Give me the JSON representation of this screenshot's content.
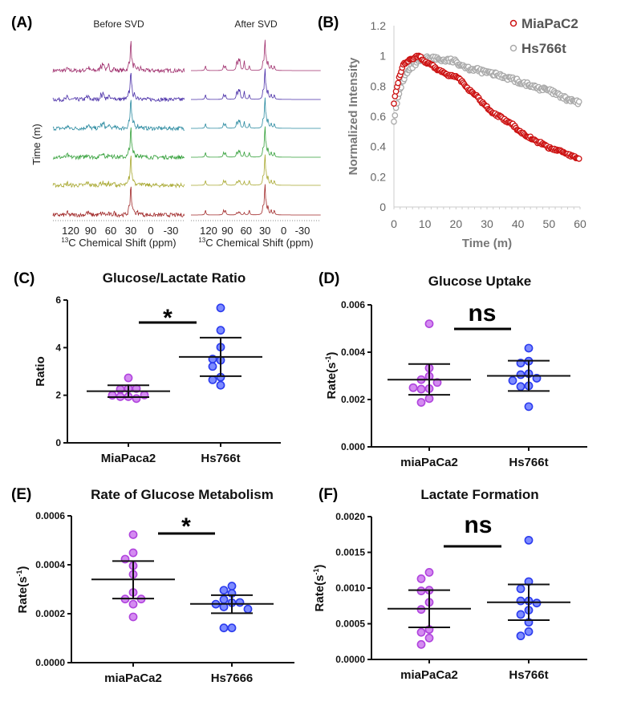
{
  "chart_data": [
    {
      "panel": "(A)",
      "type": "line",
      "subplots": [
        {
          "title": "Before SVD",
          "denoised": false
        },
        {
          "title": "After SVD",
          "denoised": true
        }
      ],
      "ylabel": "Time (m)",
      "xlabel_sup": "13",
      "xlabel": "C Chemical Shift (ppm)",
      "xticks": [
        "120",
        "90",
        "60",
        "30",
        "0",
        "-30"
      ],
      "x_reversed": true,
      "peaks_ppm": [
        125,
        96,
        93,
        75,
        72,
        70,
        63,
        55,
        33,
        30,
        28,
        25,
        20,
        15
      ],
      "trace_colors": [
        "#a0306e",
        "#4a2fa8",
        "#2a8aa0",
        "#34a03a",
        "#a8a830",
        "#a02828"
      ]
    },
    {
      "panel": "(B)",
      "type": "scatter",
      "xlabel": "Time (m)",
      "ylabel": "Normalized Intensity",
      "xlim": [
        0,
        60
      ],
      "ylim": [
        0,
        1.2
      ],
      "xticks": [
        "0",
        "10",
        "20",
        "30",
        "40",
        "50",
        "60"
      ],
      "yticks": [
        "0",
        "0.2",
        "0.4",
        "0.6",
        "0.8",
        "1",
        "1.2"
      ],
      "legend_position": "top-right",
      "x": [
        0,
        1,
        2,
        3,
        4,
        6,
        8,
        10,
        12,
        14,
        16,
        18,
        20,
        22,
        24,
        26,
        28,
        30,
        32,
        34,
        36,
        38,
        40,
        42,
        44,
        46,
        48,
        50,
        52,
        54,
        56,
        58,
        60
      ],
      "series": [
        {
          "name": "MiaPaC2",
          "color": "#cc1111",
          "values": [
            0.69,
            0.8,
            0.88,
            0.94,
            0.96,
            0.98,
            1.0,
            0.96,
            0.94,
            0.91,
            0.89,
            0.87,
            0.86,
            0.83,
            0.78,
            0.75,
            0.7,
            0.66,
            0.62,
            0.6,
            0.57,
            0.55,
            0.51,
            0.48,
            0.46,
            0.43,
            0.42,
            0.39,
            0.38,
            0.37,
            0.35,
            0.33,
            0.32
          ]
        },
        {
          "name": "Hs766t",
          "color": "#aaaaaa",
          "values": [
            0.58,
            0.68,
            0.78,
            0.84,
            0.88,
            0.93,
            0.96,
            0.98,
            0.99,
            0.98,
            0.97,
            0.97,
            0.96,
            0.94,
            0.92,
            0.91,
            0.9,
            0.89,
            0.88,
            0.87,
            0.86,
            0.85,
            0.83,
            0.82,
            0.8,
            0.79,
            0.78,
            0.77,
            0.75,
            0.73,
            0.71,
            0.7,
            0.68
          ]
        }
      ]
    },
    {
      "panel": "(C)",
      "type": "scatter",
      "title": "Glucose/Lactate Ratio",
      "ylabel": "Ratio",
      "ylim": [
        0,
        6
      ],
      "yticks": [
        "0",
        "2",
        "4",
        "6"
      ],
      "significance": "*",
      "categories": [
        "MiaPaca2",
        "Hs766t"
      ],
      "series": [
        {
          "values": [
            2.73,
            2.28,
            2.25,
            2.28,
            2.0,
            1.94,
            1.94,
            1.86,
            2.01
          ],
          "mean": 2.17,
          "err_low": 1.92,
          "err_high": 2.42
        },
        {
          "values": [
            5.67,
            4.73,
            4.02,
            3.47,
            3.52,
            3.21,
            2.76,
            2.65,
            2.42
          ],
          "mean": 3.61,
          "err_low": 2.8,
          "err_high": 4.42
        }
      ]
    },
    {
      "panel": "(D)",
      "type": "scatter",
      "title": "Glucose Uptake",
      "ylabel": "Rate(s",
      "ylabel_sup": "-1",
      "ylabel_end": ")",
      "ylim": [
        0,
        0.006
      ],
      "yticks": [
        "0.000",
        "0.002",
        "0.004",
        "0.006"
      ],
      "significance": "ns",
      "categories": [
        "miaPaCa2",
        "Hs766t"
      ],
      "series": [
        {
          "values": [
            0.0052,
            0.00333,
            0.00298,
            0.00284,
            0.00272,
            0.00246,
            0.00244,
            0.0025,
            0.00204,
            0.00188
          ],
          "mean": 0.00284,
          "err_low": 0.0022,
          "err_high": 0.0035
        },
        {
          "values": [
            0.00417,
            0.00362,
            0.00354,
            0.00309,
            0.00305,
            0.0029,
            0.0028,
            0.00258,
            0.00255,
            0.0017
          ],
          "mean": 0.003,
          "err_low": 0.00236,
          "err_high": 0.00364
        }
      ]
    },
    {
      "panel": "(E)",
      "type": "scatter",
      "title": "Rate of Glucose Metabolism",
      "ylabel": "Rate(s",
      "ylabel_sup": "-1",
      "ylabel_end": ")",
      "ylim": [
        0,
        0.0006
      ],
      "yticks": [
        "0.0000",
        "0.0002",
        "0.0004",
        "0.0006"
      ],
      "significance": "*",
      "categories": [
        "miaPaCa2",
        "Hs7666"
      ],
      "series": [
        {
          "values": [
            0.000523,
            0.000449,
            0.000423,
            0.000396,
            0.000361,
            0.000287,
            0.00026,
            0.00026,
            0.000239,
            0.000187
          ],
          "mean": 0.00034,
          "err_low": 0.000262,
          "err_high": 0.000415
        },
        {
          "values": [
            0.000313,
            0.000296,
            0.000283,
            0.000258,
            0.000245,
            0.000246,
            0.000239,
            0.000228,
            0.000219,
            0.000142,
            0.000142
          ],
          "mean": 0.00024,
          "err_low": 0.000202,
          "err_high": 0.000276
        }
      ]
    },
    {
      "panel": "(F)",
      "type": "scatter",
      "title": "Lactate Formation",
      "ylabel": "Rate(s",
      "ylabel_sup": "-1",
      "ylabel_end": ")",
      "ylim": [
        0,
        0.002
      ],
      "yticks": [
        "0.0000",
        "0.0005",
        "0.0010",
        "0.0015",
        "0.0020"
      ],
      "significance": "ns",
      "categories": [
        "miaPaCa2",
        "Hs766t"
      ],
      "series": [
        {
          "values": [
            0.00122,
            0.00113,
            0.00097,
            0.00096,
            0.0008,
            0.0007,
            0.00042,
            0.00038,
            0.0003,
            0.00021
          ],
          "mean": 0.00071,
          "err_low": 0.00045,
          "err_high": 0.00097
        },
        {
          "values": [
            0.00167,
            0.00109,
            0.00099,
            0.00082,
            0.00082,
            0.00079,
            0.00069,
            0.00063,
            0.00052,
            0.00039,
            0.00033
          ],
          "mean": 0.0008,
          "err_low": 0.00055,
          "err_high": 0.00105
        }
      ]
    }
  ],
  "colors": {
    "group1_fill": "#cc77ee",
    "group1_stroke": "#b044dd",
    "group2_fill": "#6677ff",
    "group2_stroke": "#2b3bee"
  }
}
